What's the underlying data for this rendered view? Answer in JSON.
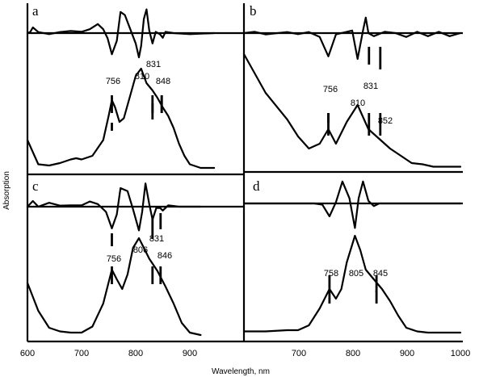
{
  "chart_data": {
    "type": "line",
    "xlabel": "Wavelength, nm",
    "ylabel": "Absorption",
    "x_ticks_left": [
      "600",
      "700",
      "800",
      "900"
    ],
    "x_ticks_right": [
      "700",
      "800",
      "900",
      "1000"
    ],
    "panels": [
      {
        "letter": "a",
        "peak_labels": [
          "756",
          "810",
          "831",
          "848"
        ],
        "markers_nm": [
          756,
          831,
          848
        ],
        "absorption": {
          "x": [
            600,
            620,
            640,
            660,
            680,
            690,
            700,
            720,
            740,
            750,
            756,
            762,
            770,
            778,
            790,
            800,
            810,
            820,
            831,
            840,
            850,
            860,
            870,
            880,
            890,
            900,
            920,
            945
          ],
          "y": [
            0.25,
            0.05,
            0.04,
            0.06,
            0.09,
            0.1,
            0.09,
            0.12,
            0.25,
            0.45,
            0.58,
            0.52,
            0.4,
            0.43,
            0.62,
            0.78,
            0.84,
            0.72,
            0.66,
            0.6,
            0.52,
            0.45,
            0.35,
            0.22,
            0.12,
            0.05,
            0.02,
            0.02
          ]
        },
        "second_derivative": {
          "x": [
            600,
            605,
            610,
            620,
            640,
            660,
            680,
            700,
            715,
            730,
            740,
            748,
            756,
            765,
            772,
            780,
            790,
            800,
            806,
            810,
            815,
            820,
            825,
            831,
            837,
            845,
            850,
            855,
            870,
            900,
            945
          ],
          "y": [
            0.0,
            0.04,
            0.22,
            0.04,
            -0.04,
            0.04,
            0.08,
            0.05,
            0.15,
            0.35,
            0.15,
            -0.2,
            -0.82,
            -0.3,
            0.82,
            0.7,
            0.15,
            -0.4,
            -0.94,
            -0.5,
            0.55,
            0.92,
            0.1,
            -0.4,
            0.05,
            -0.05,
            -0.18,
            0.05,
            0.0,
            -0.04,
            0.0
          ]
        }
      },
      {
        "letter": "b",
        "peak_labels": [
          "756",
          "810",
          "831",
          "852"
        ],
        "markers_nm": [
          756,
          831,
          852
        ],
        "absorption": {
          "x": [
            600,
            640,
            680,
            700,
            720,
            740,
            756,
            770,
            790,
            810,
            830,
            850,
            870,
            890,
            910,
            930,
            950,
            1000
          ],
          "y": [
            0.96,
            0.64,
            0.42,
            0.28,
            0.18,
            0.22,
            0.34,
            0.22,
            0.4,
            0.54,
            0.34,
            0.26,
            0.18,
            0.12,
            0.06,
            0.05,
            0.03,
            0.03
          ]
        },
        "second_derivative": {
          "x": [
            600,
            620,
            640,
            680,
            700,
            720,
            740,
            756,
            770,
            790,
            800,
            810,
            820,
            825,
            830,
            840,
            860,
            880,
            900,
            920,
            940,
            960,
            980,
            1000
          ],
          "y": [
            0.0,
            0.05,
            -0.05,
            0.04,
            -0.04,
            0.04,
            -0.15,
            -0.9,
            -0.05,
            0.05,
            0.1,
            -1.0,
            0.1,
            0.6,
            0.0,
            -0.12,
            0.05,
            0.0,
            -0.15,
            0.05,
            -0.12,
            0.05,
            -0.12,
            0.0
          ]
        }
      },
      {
        "letter": "c",
        "peak_labels": [
          "756",
          "806",
          "831",
          "846"
        ],
        "markers_nm": [
          756,
          831,
          846
        ],
        "absorption": {
          "x": [
            600,
            620,
            640,
            660,
            680,
            700,
            720,
            740,
            756,
            765,
            775,
            785,
            795,
            806,
            815,
            825,
            840,
            855,
            870,
            885,
            900,
            920
          ],
          "y": [
            0.45,
            0.22,
            0.08,
            0.05,
            0.04,
            0.04,
            0.09,
            0.28,
            0.56,
            0.48,
            0.4,
            0.52,
            0.74,
            0.82,
            0.74,
            0.65,
            0.55,
            0.42,
            0.28,
            0.12,
            0.04,
            0.02
          ]
        },
        "second_derivative": {
          "x": [
            600,
            610,
            620,
            640,
            660,
            680,
            700,
            715,
            730,
            745,
            756,
            765,
            772,
            785,
            795,
            806,
            812,
            818,
            825,
            831,
            838,
            845,
            850,
            860,
            880,
            920
          ],
          "y": [
            0.0,
            0.22,
            0.0,
            0.15,
            0.04,
            0.05,
            0.05,
            0.2,
            0.1,
            -0.2,
            -0.84,
            -0.3,
            0.72,
            0.6,
            -0.1,
            -0.92,
            -0.2,
            0.9,
            0.1,
            -0.5,
            -0.05,
            -0.05,
            -0.15,
            0.05,
            0.0,
            0.0
          ]
        }
      },
      {
        "letter": "d",
        "peak_labels": [
          "758",
          "805",
          "845"
        ],
        "markers_nm": [
          758,
          845
        ],
        "absorption": {
          "x": [
            600,
            640,
            680,
            700,
            720,
            740,
            758,
            770,
            780,
            790,
            805,
            815,
            825,
            840,
            855,
            870,
            885,
            900,
            920,
            940,
            1000
          ],
          "y": [
            0.05,
            0.05,
            0.06,
            0.06,
            0.1,
            0.24,
            0.4,
            0.32,
            0.4,
            0.62,
            0.84,
            0.72,
            0.56,
            0.48,
            0.4,
            0.3,
            0.18,
            0.08,
            0.05,
            0.04,
            0.04
          ]
        },
        "second_derivative": {
          "x": [
            600,
            700,
            730,
            745,
            758,
            770,
            782,
            795,
            805,
            812,
            820,
            830,
            840,
            850,
            870,
            900,
            1000
          ],
          "y": [
            0.0,
            0.0,
            0.0,
            -0.05,
            -0.5,
            0.05,
            0.85,
            0.2,
            -0.95,
            0.2,
            0.85,
            0.1,
            -0.1,
            0.0,
            0.0,
            0.0,
            0.0
          ]
        }
      }
    ]
  }
}
